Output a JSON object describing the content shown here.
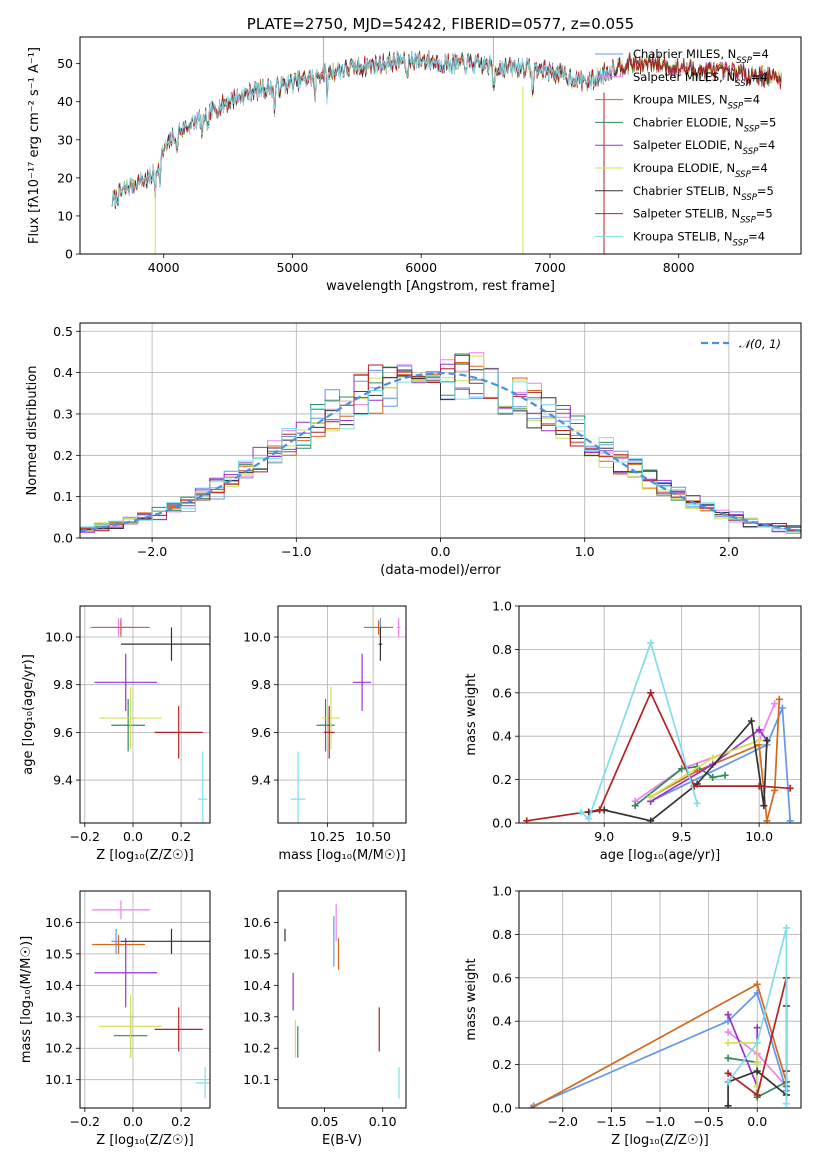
{
  "colors": [
    "#6495ed",
    "#ee82ee",
    "#d2691e",
    "#2e8b57",
    "#9932cc",
    "#d4e157",
    "#333333",
    "#b22222",
    "#80deea"
  ],
  "chart_data": [
    {
      "type": "line",
      "title": "PLATE=2750, MJD=54242, FIBERID=0577, z=0.055",
      "xlabel": "wavelength [Angstrom, rest frame]",
      "ylabel": "Flux [fλ10⁻¹⁷ erg cm⁻² s⁻¹ A⁻¹]",
      "xlim": [
        3350,
        8950
      ],
      "ylim": [
        0,
        57
      ],
      "xticks": [
        4000,
        5000,
        6000,
        7000,
        8000
      ],
      "yticks": [
        0,
        10,
        20,
        30,
        40,
        50
      ],
      "legend": [
        {
          "label": "Chabrier MILES, N",
          "sub": "SSP",
          "suffix": "=4"
        },
        {
          "label": "Salpeter MILES, N",
          "sub": "SSP",
          "suffix": "=4"
        },
        {
          "label": "Kroupa MILES, N",
          "sub": "SSP",
          "suffix": "=4"
        },
        {
          "label": "Chabrier ELODIE, N",
          "sub": "SSP",
          "suffix": "=5"
        },
        {
          "label": "Salpeter ELODIE, N",
          "sub": "SSP",
          "suffix": "=4"
        },
        {
          "label": "Kroupa ELODIE, N",
          "sub": "SSP",
          "suffix": "=4"
        },
        {
          "label": "Chabrier STELIB, N",
          "sub": "SSP",
          "suffix": "=5"
        },
        {
          "label": "Salpeter STELIB, N",
          "sub": "SSP",
          "suffix": "=5"
        },
        {
          "label": "Kroupa STELIB, N",
          "sub": "SSP",
          "suffix": "=4"
        }
      ],
      "continuum": {
        "x": [
          3600,
          3700,
          3800,
          3900,
          4000,
          4100,
          4200,
          4300,
          4400,
          4500,
          4700,
          4900,
          5000,
          5100,
          5200,
          5300,
          5500,
          5700,
          5900,
          6000,
          6200,
          6400,
          6600,
          6800,
          7000,
          7100,
          7200,
          7300,
          7400,
          7500,
          7600,
          7800,
          8000,
          8200,
          8400,
          8600,
          8800
        ],
        "y": [
          14,
          17,
          19,
          20,
          27,
          32,
          34,
          36,
          38,
          40,
          43,
          44,
          45,
          46,
          47,
          48,
          49,
          50,
          51,
          51,
          50,
          50,
          49,
          49,
          48,
          47,
          46,
          45,
          47,
          49,
          50,
          50,
          49,
          48,
          48,
          47,
          46
        ]
      },
      "dips": [
        {
          "x": 3934,
          "y": 0,
          "series": 5
        },
        {
          "x": 6790,
          "y": 0,
          "series": 5
        },
        {
          "x": 7420,
          "y": 0,
          "series": 7
        }
      ],
      "spikes": [
        {
          "x": 5240,
          "y": 57
        },
        {
          "x": 6560,
          "y": 57
        }
      ]
    },
    {
      "type": "histogram",
      "xlabel": "(data-model)/error",
      "ylabel": "Normed distribution",
      "xlim": [
        -2.5,
        2.5
      ],
      "ylim": [
        0,
        0.52
      ],
      "xticks": [
        -2,
        -1,
        0,
        1,
        2
      ],
      "yticks": [
        0.0,
        0.1,
        0.2,
        0.3,
        0.4,
        0.5
      ],
      "legend_label": "𝒩(0, 1)",
      "gaussian": {
        "mean": 0,
        "sigma": 1
      }
    },
    {
      "type": "scatter",
      "xlabel": "Z [log₁₀(Z/Z☉)]",
      "ylabel": "age  [log₁₀(age/yr)]",
      "xlim": [
        -0.22,
        0.32
      ],
      "ylim": [
        9.22,
        10.13
      ],
      "xticks": [
        -0.2,
        0.0,
        0.2
      ],
      "yticks": [
        9.4,
        9.6,
        9.8,
        10.0
      ],
      "points": [
        {
          "series": 0,
          "x": -0.05,
          "y": 10.04,
          "xerr": 0.04,
          "yerr": 0.04
        },
        {
          "series": 1,
          "x": -0.06,
          "y": 10.04,
          "xerr": 0.12,
          "yerr": 0.04
        },
        {
          "series": 2,
          "x": -0.05,
          "y": 10.04,
          "xerr": 0.12,
          "yerr": 0.03
        },
        {
          "series": 3,
          "x": -0.02,
          "y": 9.63,
          "xerr": 0.07,
          "yerr": 0.11
        },
        {
          "series": 4,
          "x": -0.03,
          "y": 9.81,
          "xerr": 0.13,
          "yerr": 0.12
        },
        {
          "series": 5,
          "x": -0.01,
          "y": 9.66,
          "xerr": 0.13,
          "yerr": 0.13
        },
        {
          "series": 6,
          "x": 0.16,
          "y": 9.97,
          "xerr": 0.21,
          "yerr": 0.07
        },
        {
          "series": 7,
          "x": 0.19,
          "y": 9.6,
          "xerr": 0.1,
          "yerr": 0.11
        },
        {
          "series": 8,
          "x": 0.29,
          "y": 9.32,
          "xerr": 0.02,
          "yerr": 0.2
        }
      ]
    },
    {
      "type": "scatter",
      "xlabel": "mass [log₁₀(M/M☉)]",
      "ylabel": "",
      "xlim": [
        9.98,
        10.68
      ],
      "ylim": [
        9.22,
        10.13
      ],
      "xticks": [
        10.25,
        10.5
      ],
      "yticks": [
        9.4,
        9.6,
        9.8,
        10.0
      ],
      "points": [
        {
          "series": 0,
          "x": 10.54,
          "y": 10.04,
          "xerr": 0.03,
          "yerr": 0.04
        },
        {
          "series": 1,
          "x": 10.64,
          "y": 10.04,
          "xerr": 0.01,
          "yerr": 0.04
        },
        {
          "series": 2,
          "x": 10.53,
          "y": 10.04,
          "xerr": 0.08,
          "yerr": 0.03
        },
        {
          "series": 3,
          "x": 10.24,
          "y": 9.63,
          "xerr": 0.05,
          "yerr": 0.11
        },
        {
          "series": 4,
          "x": 10.44,
          "y": 9.81,
          "xerr": 0.05,
          "yerr": 0.12
        },
        {
          "series": 5,
          "x": 10.27,
          "y": 9.66,
          "xerr": 0.05,
          "yerr": 0.13
        },
        {
          "series": 6,
          "x": 10.54,
          "y": 9.97,
          "xerr": 0.01,
          "yerr": 0.07
        },
        {
          "series": 7,
          "x": 10.26,
          "y": 9.6,
          "xerr": 0.03,
          "yerr": 0.11
        },
        {
          "series": 8,
          "x": 10.09,
          "y": 9.32,
          "xerr": 0.04,
          "yerr": 0.2
        }
      ]
    },
    {
      "type": "line",
      "xlabel": "age  [log₁₀(age/yr)]",
      "ylabel": "mass weight",
      "xlim": [
        8.45,
        10.27
      ],
      "ylim": [
        0,
        1.0
      ],
      "xticks": [
        9.0,
        9.5,
        10.0
      ],
      "yticks": [
        0.0,
        0.2,
        0.4,
        0.6,
        0.8,
        1.0
      ],
      "series": [
        {
          "series": 0,
          "x": [
            9.3,
            10.05,
            10.15,
            10.2
          ],
          "y": [
            0.1,
            0.36,
            0.53,
            0.01
          ]
        },
        {
          "series": 1,
          "x": [
            9.2,
            9.5,
            10.0,
            10.1
          ],
          "y": [
            0.1,
            0.25,
            0.38,
            0.55
          ]
        },
        {
          "series": 2,
          "x": [
            9.3,
            9.6,
            10.0,
            10.05,
            10.1,
            10.13
          ],
          "y": [
            0.12,
            0.24,
            0.36,
            0.01,
            0.15,
            0.57
          ]
        },
        {
          "series": 3,
          "x": [
            9.2,
            9.5,
            9.6,
            9.7,
            9.78
          ],
          "y": [
            0.08,
            0.25,
            0.26,
            0.21,
            0.22
          ]
        },
        {
          "series": 4,
          "x": [
            9.3,
            9.7,
            10.0,
            10.05
          ],
          "y": [
            0.1,
            0.27,
            0.43,
            0.38
          ]
        },
        {
          "series": 5,
          "x": [
            9.3,
            9.7,
            10.0
          ],
          "y": [
            0.12,
            0.3,
            0.38
          ]
        },
        {
          "series": 6,
          "x": [
            8.9,
            9.0,
            9.3,
            9.6,
            9.95,
            10.03,
            10.05
          ],
          "y": [
            0.05,
            0.06,
            0.01,
            0.18,
            0.47,
            0.08,
            0.38
          ]
        },
        {
          "series": 7,
          "x": [
            8.5,
            8.97,
            9.3,
            9.58,
            10.0,
            10.2
          ],
          "y": [
            0.01,
            0.06,
            0.6,
            0.17,
            0.17,
            0.16
          ]
        },
        {
          "series": 8,
          "x": [
            8.85,
            8.9,
            9.3,
            9.6
          ],
          "y": [
            0.05,
            0.02,
            0.83,
            0.09
          ]
        }
      ]
    },
    {
      "type": "scatter",
      "xlabel": "Z [log₁₀(Z/Z☉)]",
      "ylabel": "mass [log₁₀(M/M☉)]",
      "xlim": [
        -0.22,
        0.32
      ],
      "ylim": [
        10.01,
        10.7
      ],
      "xticks": [
        -0.2,
        0.0,
        0.2
      ],
      "yticks": [
        10.1,
        10.2,
        10.3,
        10.4,
        10.5,
        10.6
      ],
      "points": [
        {
          "series": 0,
          "x": -0.07,
          "y": 10.54,
          "xerr": 0.02,
          "yerr": 0.04
        },
        {
          "series": 1,
          "x": -0.05,
          "y": 10.64,
          "xerr": 0.12,
          "yerr": 0.03
        },
        {
          "series": 2,
          "x": -0.06,
          "y": 10.53,
          "xerr": 0.11,
          "yerr": 0.03
        },
        {
          "series": 3,
          "x": -0.01,
          "y": 10.24,
          "xerr": 0.07,
          "yerr": 0.07
        },
        {
          "series": 4,
          "x": -0.03,
          "y": 10.44,
          "xerr": 0.13,
          "yerr": 0.11
        },
        {
          "series": 5,
          "x": -0.01,
          "y": 10.27,
          "xerr": 0.13,
          "yerr": 0.1
        },
        {
          "series": 6,
          "x": 0.16,
          "y": 10.54,
          "xerr": 0.21,
          "yerr": 0.04
        },
        {
          "series": 7,
          "x": 0.19,
          "y": 10.26,
          "xerr": 0.1,
          "yerr": 0.07
        },
        {
          "series": 8,
          "x": 0.3,
          "y": 10.09,
          "xerr": 0.04,
          "yerr": 0.05
        }
      ]
    },
    {
      "type": "scatter",
      "xlabel": "E(B-V)",
      "ylabel": "",
      "xlim": [
        0.01,
        0.12
      ],
      "ylim": [
        10.01,
        10.7
      ],
      "xticks": [
        0.05,
        0.1
      ],
      "yticks": [
        10.1,
        10.2,
        10.3,
        10.4,
        10.5,
        10.6
      ],
      "points": [
        {
          "series": 0,
          "x": 0.058,
          "y": 10.54,
          "xerr": 0,
          "yerr": 0.08
        },
        {
          "series": 1,
          "x": 0.06,
          "y": 10.6,
          "xerr": 0,
          "yerr": 0.06
        },
        {
          "series": 2,
          "x": 0.062,
          "y": 10.5,
          "xerr": 0,
          "yerr": 0.05
        },
        {
          "series": 3,
          "x": 0.027,
          "y": 10.22,
          "xerr": 0,
          "yerr": 0.05
        },
        {
          "series": 4,
          "x": 0.023,
          "y": 10.38,
          "xerr": 0,
          "yerr": 0.06
        },
        {
          "series": 5,
          "x": 0.025,
          "y": 10.23,
          "xerr": 0,
          "yerr": 0.06
        },
        {
          "series": 6,
          "x": 0.016,
          "y": 10.56,
          "xerr": 0,
          "yerr": 0.02
        },
        {
          "series": 7,
          "x": 0.097,
          "y": 10.26,
          "xerr": 0,
          "yerr": 0.07
        },
        {
          "series": 8,
          "x": 0.114,
          "y": 10.09,
          "xerr": 0,
          "yerr": 0.05
        }
      ]
    },
    {
      "type": "line",
      "xlabel": "Z [log₁₀(Z/Z☉)]",
      "ylabel": "mass weight",
      "xlim": [
        -2.45,
        0.45
      ],
      "ylim": [
        0,
        1.0
      ],
      "xticks": [
        -2.0,
        -1.5,
        -1.0,
        -0.5,
        0.0
      ],
      "yticks": [
        0.0,
        0.2,
        0.4,
        0.6,
        0.8,
        1.0
      ],
      "series": [
        {
          "series": 0,
          "x": [
            -2.3,
            -0.3,
            0.0,
            0.3
          ],
          "y": [
            0.01,
            0.4,
            0.53,
            0.08
          ]
        },
        {
          "series": 1,
          "x": [
            -0.3,
            0.0,
            0.3
          ],
          "y": [
            0.35,
            0.25,
            0.1
          ]
        },
        {
          "series": 2,
          "x": [
            -2.32,
            0.0,
            0.3,
            0.3
          ],
          "y": [
            0.0,
            0.57,
            0.12,
            0.1
          ]
        },
        {
          "series": 3,
          "x": [
            -0.3,
            0.0,
            0.0,
            0.3,
            0.3
          ],
          "y": [
            0.23,
            0.21,
            0.05,
            0.12,
            0.1
          ]
        },
        {
          "series": 4,
          "x": [
            -0.3,
            0.0,
            0.0
          ],
          "y": [
            0.43,
            0.1,
            0.37
          ]
        },
        {
          "series": 5,
          "x": [
            -0.3,
            0.0,
            0.0,
            0.0
          ],
          "y": [
            0.3,
            0.3,
            0.1,
            0.21
          ]
        },
        {
          "series": 6,
          "x": [
            -0.3,
            -0.3,
            0.0,
            0.3,
            0.3
          ],
          "y": [
            0.01,
            0.12,
            0.17,
            0.06,
            0.47
          ]
        },
        {
          "series": 7,
          "x": [
            -0.3,
            0.0,
            0.3,
            0.3
          ],
          "y": [
            0.16,
            0.06,
            0.6,
            0.17
          ]
        },
        {
          "series": 8,
          "x": [
            -0.3,
            0.0,
            0.3,
            0.3
          ],
          "y": [
            0.12,
            0.3,
            0.83,
            0.02
          ]
        }
      ]
    }
  ]
}
